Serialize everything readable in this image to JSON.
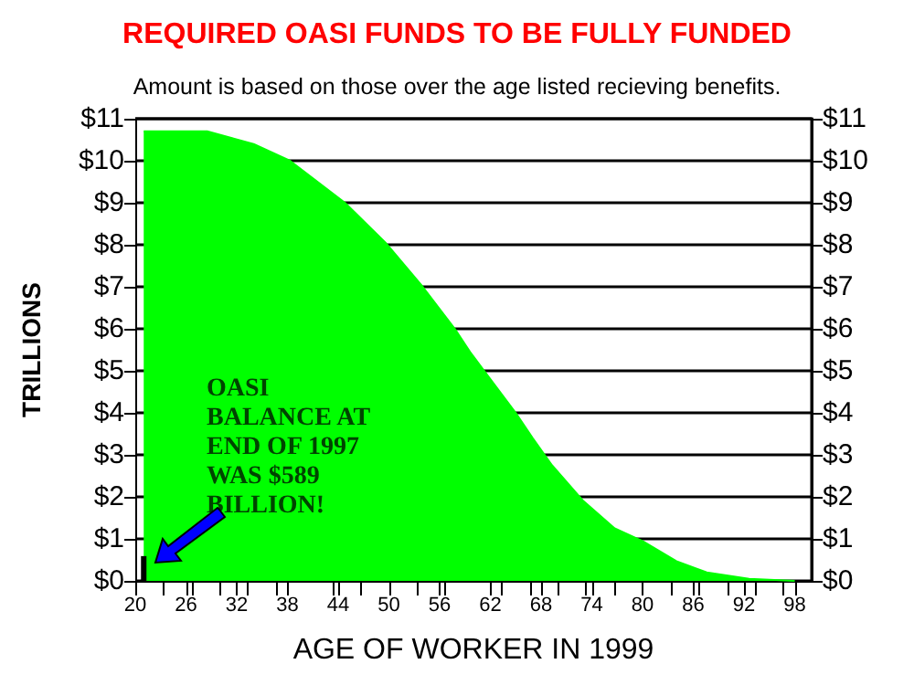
{
  "chart_data": {
    "type": "area",
    "title": "REQUIRED OASI FUNDS TO BE FULLY FUNDED",
    "subtitle": "Amount is based on those over the age listed recieving benefits.",
    "xlabel": "AGE OF WORKER IN 1999",
    "ylabel": "TRILLIONS",
    "annotations": [
      "OASI BALANCE AT END OF 1997 WAS $589 BILLION!"
    ],
    "series": [
      {
        "color": "#00ff00",
        "x": [
          21,
          28.5,
          34,
          38.3,
          44.8,
          49.6,
          54,
          57.8,
          59.6,
          62,
          65,
          67,
          69.3,
          73,
          76.7,
          80,
          84,
          87.6,
          92.6,
          98
        ],
        "values": [
          10.7,
          10.7,
          10.4,
          10.0,
          9.0,
          8.05,
          7.0,
          6.0,
          5.45,
          4.8,
          4.0,
          3.4,
          2.75,
          1.9,
          1.25,
          0.95,
          0.47,
          0.2,
          0.05,
          0
        ]
      },
      {
        "type": "bar",
        "color": "#000000",
        "x": [
          21
        ],
        "values": [
          0.59
        ]
      }
    ],
    "xlim": [
      20,
      100
    ],
    "xticks": [
      20,
      26,
      32,
      38,
      44,
      50,
      56,
      62,
      68,
      74,
      80,
      86,
      92,
      98
    ],
    "ylim": [
      0,
      11
    ],
    "yticks": [
      {
        "value": 0,
        "label": "$0"
      },
      {
        "value": 1,
        "label": "$1"
      },
      {
        "value": 2,
        "label": "$2"
      },
      {
        "value": 3,
        "label": "$3"
      },
      {
        "value": 4,
        "label": "$4"
      },
      {
        "value": 5,
        "label": "$5"
      },
      {
        "value": 6,
        "label": "$6"
      },
      {
        "value": 7,
        "label": "$7"
      },
      {
        "value": 8,
        "label": "$8"
      },
      {
        "value": 9,
        "label": "$9"
      },
      {
        "value": 10,
        "label": "$10"
      },
      {
        "value": 11,
        "label": "$11"
      }
    ],
    "y2lim": [
      0,
      11
    ],
    "y2ticks": [
      {
        "value": 0,
        "label": "$0"
      },
      {
        "value": 1,
        "label": "$1"
      },
      {
        "value": 2,
        "label": "$2"
      },
      {
        "value": 3,
        "label": "$3"
      },
      {
        "value": 4,
        "label": "$4"
      },
      {
        "value": 5,
        "label": "$5"
      },
      {
        "value": 6,
        "label": "$6"
      },
      {
        "value": 7,
        "label": "$7"
      },
      {
        "value": 8,
        "label": "$8"
      },
      {
        "value": 9,
        "label": "$9"
      },
      {
        "value": 10,
        "label": "$10"
      },
      {
        "value": 11,
        "label": "$11"
      }
    ],
    "grid": "y"
  }
}
